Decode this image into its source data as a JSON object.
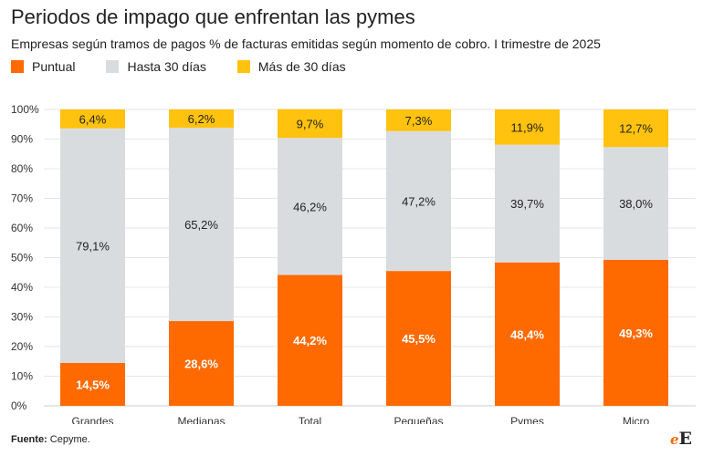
{
  "title": "Periodos de impago que enfrentan las pymes",
  "subtitle": "Empresas según tramos de pagos % de facturas emitidas según momento de cobro. I trimestre de 2025",
  "source_label": "Fuente:",
  "source_text": " Cepyme.",
  "logo": {
    "mark_e": "e",
    "mark_E": "E"
  },
  "colors": {
    "puntual": "#ff6a00",
    "hasta30": "#d9dcdf",
    "mas30": "#ffc20e"
  },
  "chart_data": {
    "type": "bar",
    "stacked": true,
    "categories": [
      "Grandes",
      "Medianas",
      "Total",
      "Pequeñas",
      "Pymes",
      "Micro"
    ],
    "series": [
      {
        "name": "Puntual",
        "values": [
          14.5,
          28.6,
          44.2,
          45.5,
          48.4,
          49.3
        ],
        "labels": [
          "14,5%",
          "28,6%",
          "44,2%",
          "45,5%",
          "48,4%",
          "49,3%"
        ]
      },
      {
        "name": "Hasta 30 días",
        "values": [
          79.1,
          65.2,
          46.2,
          47.2,
          39.7,
          38.0
        ],
        "labels": [
          "79,1%",
          "65,2%",
          "46,2%",
          "47,2%",
          "39,7%",
          "38,0%"
        ]
      },
      {
        "name": "Más de 30 días",
        "values": [
          6.4,
          6.2,
          9.7,
          7.3,
          11.9,
          12.7
        ],
        "labels": [
          "6,4%",
          "6,2%",
          "9,7%",
          "7,3%",
          "11,9%",
          "12,7%"
        ]
      }
    ],
    "yticks": [
      "0%",
      "10%",
      "20%",
      "30%",
      "40%",
      "50%",
      "60%",
      "70%",
      "80%",
      "90%",
      "100%"
    ],
    "ylim": [
      0,
      100
    ],
    "grid": true,
    "legend": "top-left"
  }
}
